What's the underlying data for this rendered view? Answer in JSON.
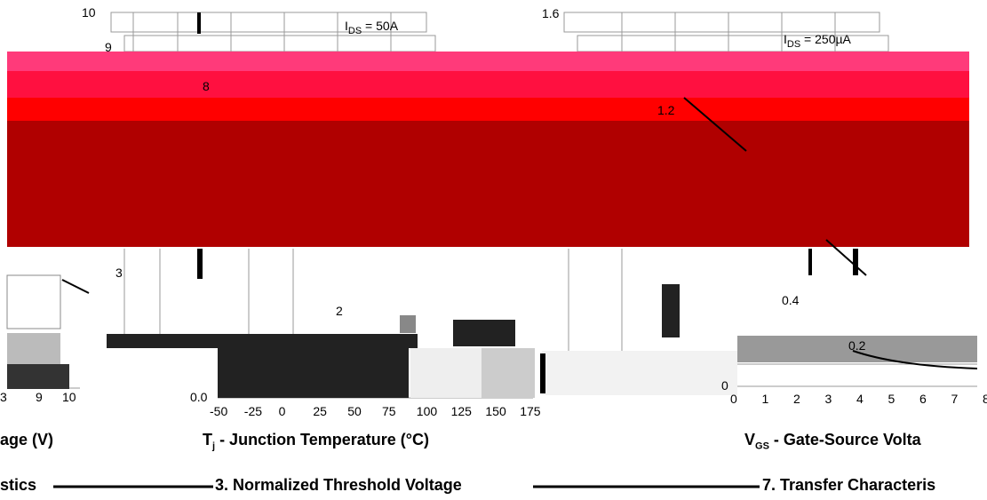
{
  "left_panel": {
    "x_ticks": [
      "3",
      "9",
      "10"
    ],
    "axis_title": "age (V)",
    "caption": "stics"
  },
  "middle_panel": {
    "y_ticks": [
      "10",
      "9",
      "8",
      "3",
      "2",
      "0.0"
    ],
    "x_ticks": [
      "-50",
      "-25",
      "0",
      "25",
      "50",
      "75",
      "100",
      "125",
      "150",
      "175"
    ],
    "annotation": {
      "symbol": "I",
      "subscript": "DS",
      "rest": " = 50A"
    },
    "axis_title": {
      "symbol": "T",
      "subscript": "j",
      "rest": " - Junction Temperature (°C)"
    },
    "caption": "3. Normalized Threshold Voltage"
  },
  "right_panel": {
    "y_ticks": [
      "1.6",
      "1.2",
      "0.4",
      "0.2",
      "0"
    ],
    "x_ticks": [
      "0",
      "1",
      "2",
      "3",
      "4",
      "5",
      "6",
      "7",
      "8"
    ],
    "annotation": {
      "symbol": "I",
      "subscript": "DS",
      "rest": " = 250µA"
    },
    "axis_title": {
      "symbol": "V",
      "subscript": "GS",
      "rest": " - Gate-Source Volta"
    },
    "caption": "7. Transfer Characteris"
  }
}
